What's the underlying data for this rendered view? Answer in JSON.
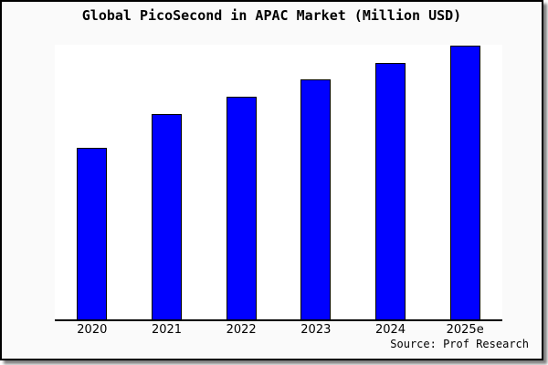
{
  "chart": {
    "title": "Global PicoSecond in APAC Market (Million USD)",
    "source": "Source: Prof Research",
    "colors": {
      "bar_fill": "#0000ff",
      "bar_edge": "#000000",
      "figure_background": "#fafafa",
      "plot_background": "#ffffff",
      "axis_line": "#000000",
      "text": "#000000"
    }
  },
  "chart_data": {
    "type": "bar",
    "title": "Global PicoSecond in APAC Market (Million USD)",
    "categories": [
      "2020",
      "2021",
      "2022",
      "2023",
      "2024",
      "2025e"
    ],
    "values": [
      188,
      225,
      244,
      263,
      281,
      300
    ],
    "value_note": "y-axis has no tick labels or gridlines; values are relative estimates proportional to bar heights",
    "xlabel": "",
    "ylabel": "",
    "ylim": [
      0,
      301
    ],
    "grid": false,
    "legend": false,
    "annotations": [
      "Source: Prof Research"
    ]
  }
}
